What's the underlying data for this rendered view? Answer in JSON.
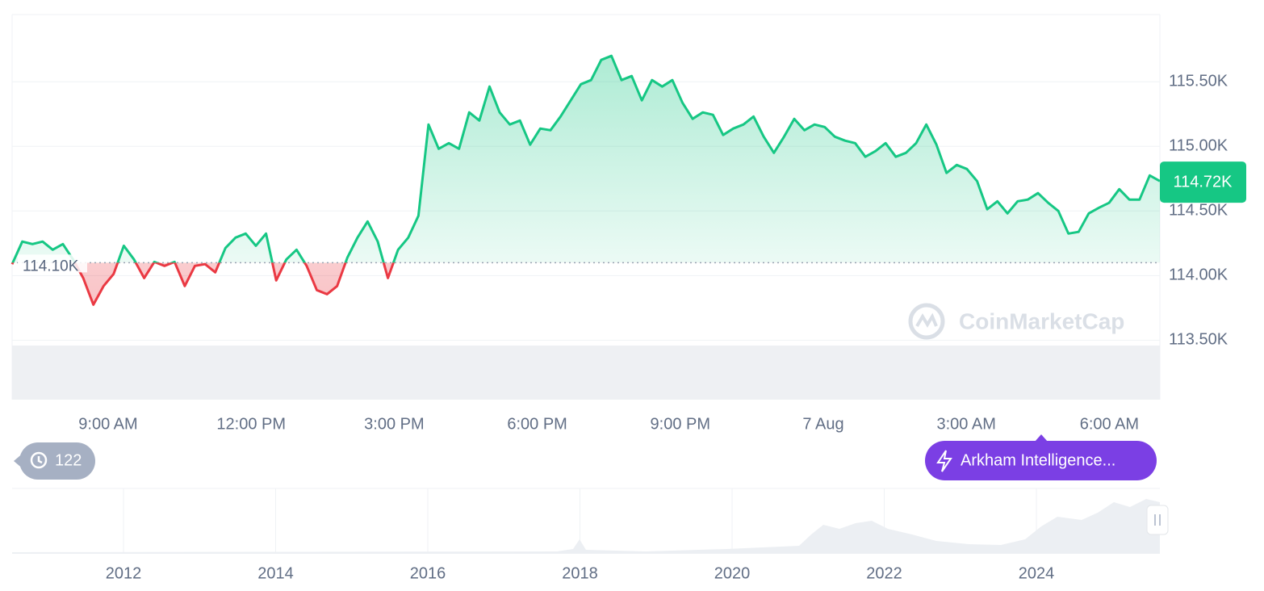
{
  "chart_data": {
    "type": "line",
    "x_labels": [
      "9:00 AM",
      "12:00 PM",
      "3:00 PM",
      "6:00 PM",
      "9:00 PM",
      "7 Aug",
      "3:00 AM",
      "6:00 AM"
    ],
    "values": [
      114088,
      114263,
      114244,
      114263,
      114200,
      114244,
      114125,
      113981,
      113775,
      113919,
      114013,
      114231,
      114125,
      113981,
      114106,
      114075,
      114106,
      113919,
      114075,
      114088,
      114025,
      114213,
      114294,
      114325,
      114231,
      114325,
      113963,
      114125,
      114200,
      114075,
      113888,
      113856,
      113919,
      114138,
      114294,
      114419,
      114263,
      113981,
      114200,
      114294,
      114463,
      115169,
      114981,
      115025,
      114981,
      115263,
      115200,
      115463,
      115263,
      115169,
      115200,
      115013,
      115138,
      115125,
      115231,
      115356,
      115481,
      115513,
      115669,
      115700,
      115513,
      115544,
      115356,
      115513,
      115463,
      115513,
      115338,
      115213,
      115263,
      115244,
      115088,
      115138,
      115169,
      115231,
      115075,
      114950,
      115075,
      115213,
      115125,
      115169,
      115150,
      115075,
      115044,
      115025,
      114919,
      114963,
      115025,
      114919,
      114950,
      115025,
      115169,
      115013,
      114794,
      114856,
      114825,
      114731,
      114513,
      114575,
      114481,
      114575,
      114588,
      114638,
      114563,
      114500,
      114325,
      114338,
      114481,
      114525,
      114563,
      114669,
      114588,
      114588,
      114775,
      114731
    ],
    "color": "#16c784",
    "negative_color": "#ea3943",
    "ylim": [
      113040,
      116020
    ],
    "yticks": [
      {
        "value": 113500,
        "label": "113.50K"
      },
      {
        "value": 114000,
        "label": "114.00K"
      },
      {
        "value": 114500,
        "label": "114.50K"
      },
      {
        "value": 115000,
        "label": "115.00K"
      },
      {
        "value": 115500,
        "label": "115.50K"
      }
    ],
    "grid": true,
    "baseline": {
      "value": 114100,
      "label": "114.10K"
    },
    "current": {
      "value": 114720,
      "label": "114.72K"
    }
  },
  "navigator": {
    "labels": [
      "2012",
      "2014",
      "2016",
      "2018",
      "2020",
      "2022",
      "2024"
    ]
  },
  "watermark": "CoinMarketCap",
  "history_badge": "122",
  "news_button": "Arkham Intelligence..."
}
